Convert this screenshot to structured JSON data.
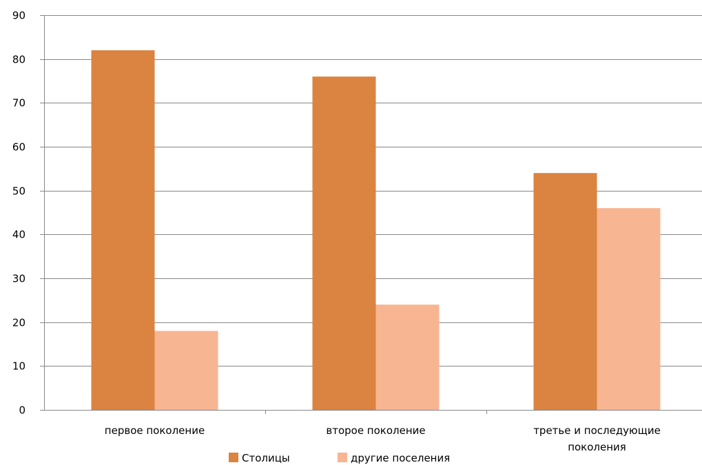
{
  "chart_data": {
    "type": "bar",
    "categories": [
      [
        "первое поколение"
      ],
      [
        "второе поколение"
      ],
      [
        "третье и последующие",
        "поколения"
      ]
    ],
    "series": [
      {
        "name": "Столицы",
        "values": [
          82,
          76,
          54
        ],
        "color": "#db8340"
      },
      {
        "name": "другие поселения",
        "values": [
          18,
          24,
          46
        ],
        "color": "#f8b592"
      }
    ],
    "ylim": [
      0,
      90
    ],
    "yticks": [
      0,
      10,
      20,
      30,
      40,
      50,
      60,
      70,
      80,
      90
    ],
    "grid": true,
    "legend": "bottom"
  }
}
